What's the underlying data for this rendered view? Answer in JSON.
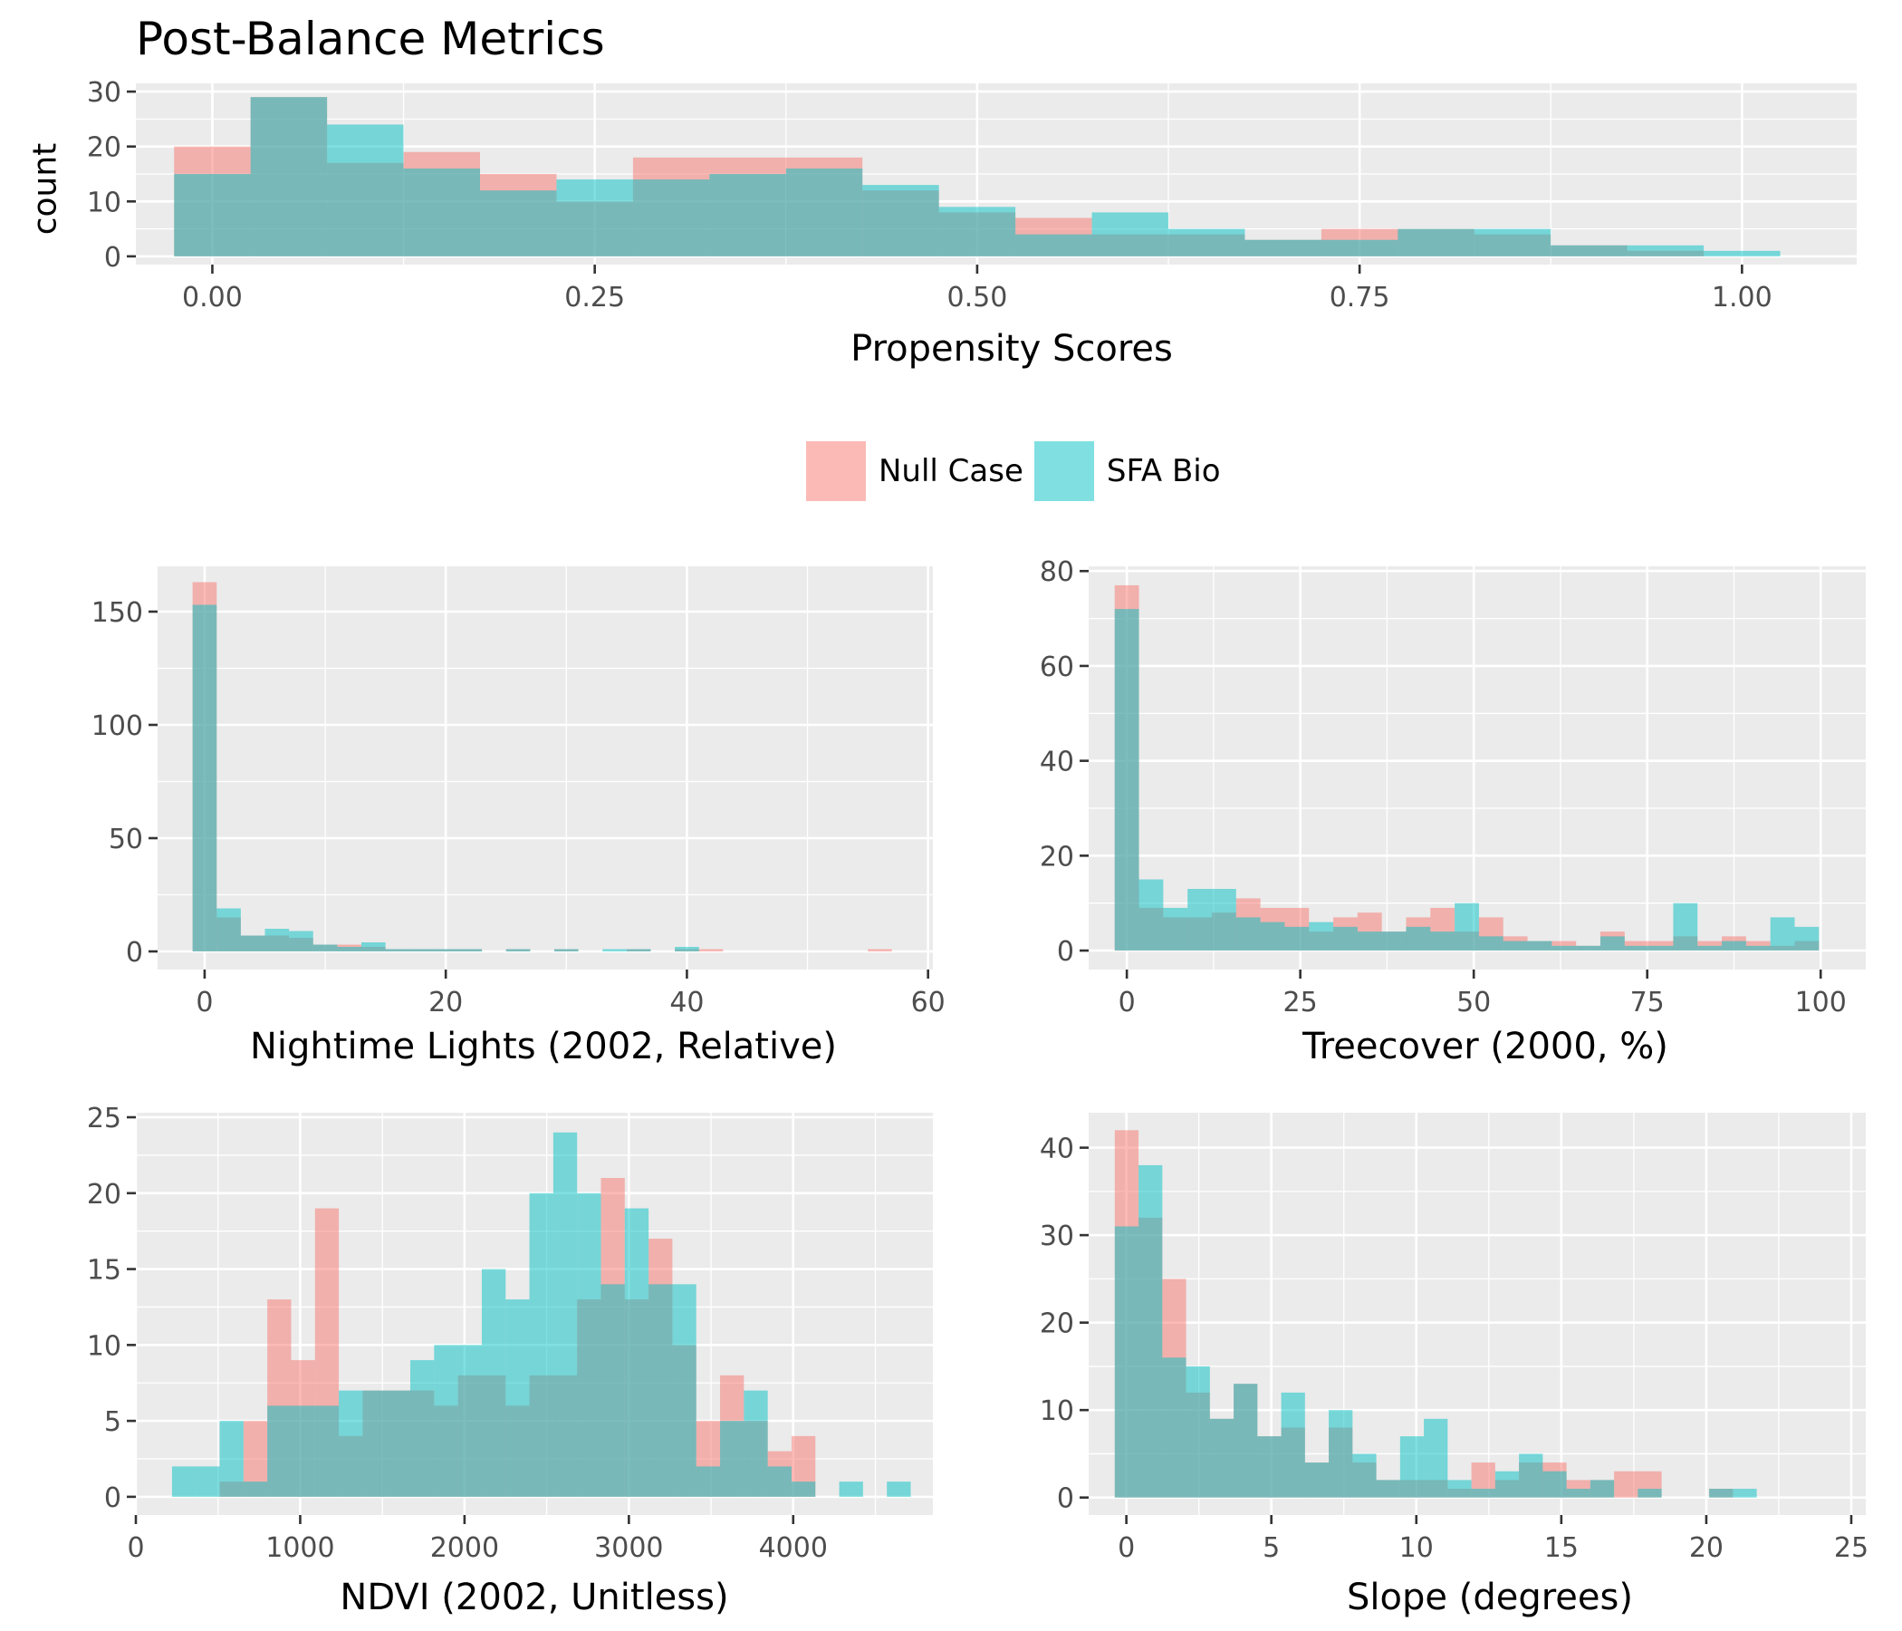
{
  "title": "Post-Balance Metrics",
  "colors": {
    "null_case": "#F8766D",
    "sfa_bio": "#00BFC4",
    "panel_bg": "#EBEBEB",
    "grid": "#FFFFFF",
    "text": "#4D4D4D"
  },
  "legend": {
    "items": [
      {
        "label": "Null Case",
        "color": "#F8766D"
      },
      {
        "label": "SFA Bio",
        "color": "#00BFC4"
      }
    ],
    "placement": "center, between rows"
  },
  "chart_data": [
    {
      "type": "histogram",
      "id": "propensity",
      "xlabel": "Propensity Scores",
      "ylabel": "count",
      "xlim": [
        -0.05,
        1.075
      ],
      "ylim": [
        -1.5,
        31.5
      ],
      "xticks": [
        0,
        0.25,
        0.5,
        0.75,
        1.0
      ],
      "xtick_labels": [
        "0.00",
        "0.25",
        "0.50",
        "0.75",
        "1.00"
      ],
      "yticks": [
        0,
        10,
        20,
        30
      ],
      "ytick_labels": [
        "0",
        "10",
        "20",
        "30"
      ],
      "bin_start": -0.025,
      "bin_width": 0.05,
      "series": [
        {
          "name": "Null Case",
          "values": [
            20,
            29,
            17,
            19,
            15,
            10,
            18,
            18,
            18,
            12,
            8,
            7,
            4,
            4,
            3,
            5,
            5,
            4,
            2,
            1,
            0
          ]
        },
        {
          "name": "SFA Bio",
          "values": [
            15,
            29,
            24,
            16,
            12,
            14,
            14,
            15,
            16,
            13,
            9,
            4,
            8,
            5,
            3,
            3,
            5,
            5,
            2,
            2,
            1
          ]
        }
      ]
    },
    {
      "type": "histogram",
      "id": "nightlights",
      "xlabel": "Nightime Lights (2002, Relative)",
      "ylabel": "",
      "xlim": [
        -3.9,
        60.4
      ],
      "ylim": [
        -8,
        170
      ],
      "xticks": [
        0,
        20,
        40,
        60
      ],
      "xtick_labels": [
        "0",
        "20",
        "40",
        "60"
      ],
      "yticks": [
        0,
        50,
        100,
        150
      ],
      "ytick_labels": [
        "0",
        "50",
        "100",
        "150"
      ],
      "bin_start": -1,
      "bin_width": 2,
      "series": [
        {
          "name": "Null Case",
          "values": [
            163,
            15,
            7,
            7,
            6,
            3,
            3,
            2,
            1,
            1,
            1,
            1,
            0,
            1,
            0,
            1,
            0,
            0,
            1,
            0,
            1,
            1,
            0,
            0,
            0,
            0,
            0,
            0,
            1
          ]
        },
        {
          "name": "SFA Bio",
          "values": [
            153,
            19,
            7,
            10,
            9,
            3,
            2,
            4,
            1,
            1,
            1,
            1,
            0,
            1,
            0,
            1,
            0,
            1,
            1,
            0,
            2,
            0,
            0,
            0,
            0,
            0,
            0,
            0,
            0
          ]
        }
      ]
    },
    {
      "type": "histogram",
      "id": "treecover",
      "xlabel": "Treecover (2000, %)",
      "ylabel": "",
      "xlim": [
        -5.5,
        106.5
      ],
      "ylim": [
        -4,
        81
      ],
      "xticks": [
        0,
        25,
        50,
        75,
        100
      ],
      "xtick_labels": [
        "0",
        "25",
        "50",
        "75",
        "100"
      ],
      "yticks": [
        0,
        20,
        40,
        60,
        80
      ],
      "ytick_labels": [
        "0",
        "20",
        "40",
        "60",
        "80"
      ],
      "bin_start": -1.75,
      "bin_width": 3.5,
      "series": [
        {
          "name": "Null Case",
          "values": [
            77,
            9,
            7,
            7,
            8,
            11,
            9,
            9,
            4,
            7,
            8,
            4,
            7,
            9,
            4,
            7,
            3,
            2,
            2,
            1,
            4,
            2,
            2,
            3,
            2,
            3,
            2,
            1,
            2
          ]
        },
        {
          "name": "SFA Bio",
          "values": [
            72,
            15,
            9,
            13,
            13,
            7,
            6,
            5,
            6,
            5,
            4,
            4,
            5,
            4,
            10,
            3,
            2,
            2,
            1,
            1,
            3,
            1,
            1,
            10,
            1,
            2,
            1,
            7,
            5
          ]
        }
      ]
    },
    {
      "type": "histogram",
      "id": "ndvi",
      "xlabel": "NDVI (2002, Unitless)",
      "ylabel": "",
      "xlim": [
        0,
        4850
      ],
      "ylim": [
        -1.2,
        25.3
      ],
      "xticks": [
        0,
        1000,
        2000,
        3000,
        4000
      ],
      "xtick_labels": [
        "0",
        "1000",
        "2000",
        "3000",
        "4000"
      ],
      "yticks": [
        0,
        5,
        10,
        15,
        20,
        25
      ],
      "ytick_labels": [
        "0",
        "5",
        "10",
        "15",
        "20",
        "25"
      ],
      "bin_start": 220,
      "bin_width": 145,
      "series": [
        {
          "name": "Null Case",
          "values": [
            0,
            0,
            1,
            5,
            13,
            9,
            19,
            4,
            7,
            7,
            7,
            6,
            8,
            8,
            6,
            8,
            8,
            13,
            21,
            13,
            17,
            10,
            5,
            8,
            5,
            3,
            4,
            0,
            0,
            0,
            0,
            0
          ]
        },
        {
          "name": "SFA Bio",
          "values": [
            2,
            2,
            5,
            1,
            6,
            6,
            6,
            7,
            7,
            7,
            9,
            10,
            10,
            15,
            13,
            20,
            24,
            20,
            14,
            19,
            14,
            14,
            2,
            5,
            7,
            2,
            1,
            0,
            1,
            0,
            1,
            0
          ]
        }
      ]
    },
    {
      "type": "histogram",
      "id": "slope",
      "xlabel": "Slope (degrees)",
      "ylabel": "",
      "xlim": [
        -1.3,
        25.5
      ],
      "ylim": [
        -2,
        44
      ],
      "xticks": [
        0,
        5,
        10,
        15,
        20,
        25
      ],
      "xtick_labels": [
        "0",
        "5",
        "10",
        "15",
        "20",
        "25"
      ],
      "yticks": [
        0,
        10,
        20,
        30,
        40
      ],
      "ytick_labels": [
        "0",
        "10",
        "20",
        "30",
        "40"
      ],
      "bin_start": -0.4,
      "bin_width": 0.82,
      "series": [
        {
          "name": "Null Case",
          "values": [
            42,
            32,
            25,
            12,
            9,
            13,
            7,
            8,
            4,
            8,
            4,
            2,
            2,
            2,
            1,
            4,
            2,
            4,
            4,
            2,
            2,
            3,
            3,
            0,
            0,
            1,
            0,
            0,
            0,
            0
          ]
        },
        {
          "name": "SFA Bio",
          "values": [
            31,
            38,
            16,
            15,
            9,
            13,
            7,
            12,
            4,
            10,
            5,
            2,
            7,
            9,
            2,
            1,
            3,
            5,
            3,
            1,
            2,
            0,
            1,
            0,
            0,
            1,
            1,
            0,
            0,
            0
          ]
        }
      ]
    }
  ]
}
